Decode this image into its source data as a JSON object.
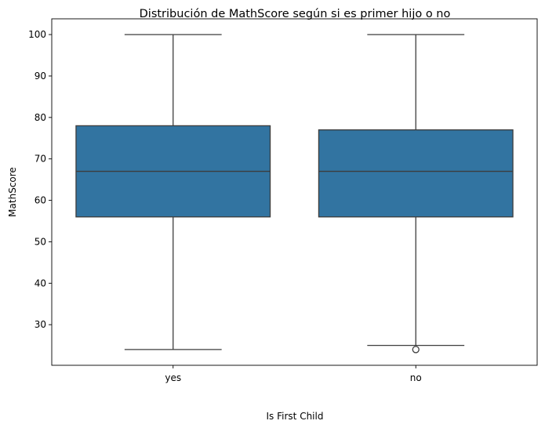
{
  "chart_data": {
    "type": "box",
    "title": "Distribución de MathScore según si es primer hijo o no",
    "xlabel": "Is First Child",
    "ylabel": "MathScore",
    "ylim": [
      20.2,
      103.8
    ],
    "yticks": [
      30,
      40,
      50,
      60,
      70,
      80,
      90,
      100
    ],
    "grid": false,
    "color": "#3274a1",
    "categories": [
      "yes",
      "no"
    ],
    "boxes": [
      {
        "category": "yes",
        "whisker_low": 24,
        "q1": 56,
        "median": 67,
        "q3": 78,
        "whisker_high": 100,
        "outliers": []
      },
      {
        "category": "no",
        "whisker_low": 25,
        "q1": 56,
        "median": 67,
        "q3": 77,
        "whisker_high": 100,
        "outliers": [
          24
        ]
      }
    ]
  }
}
